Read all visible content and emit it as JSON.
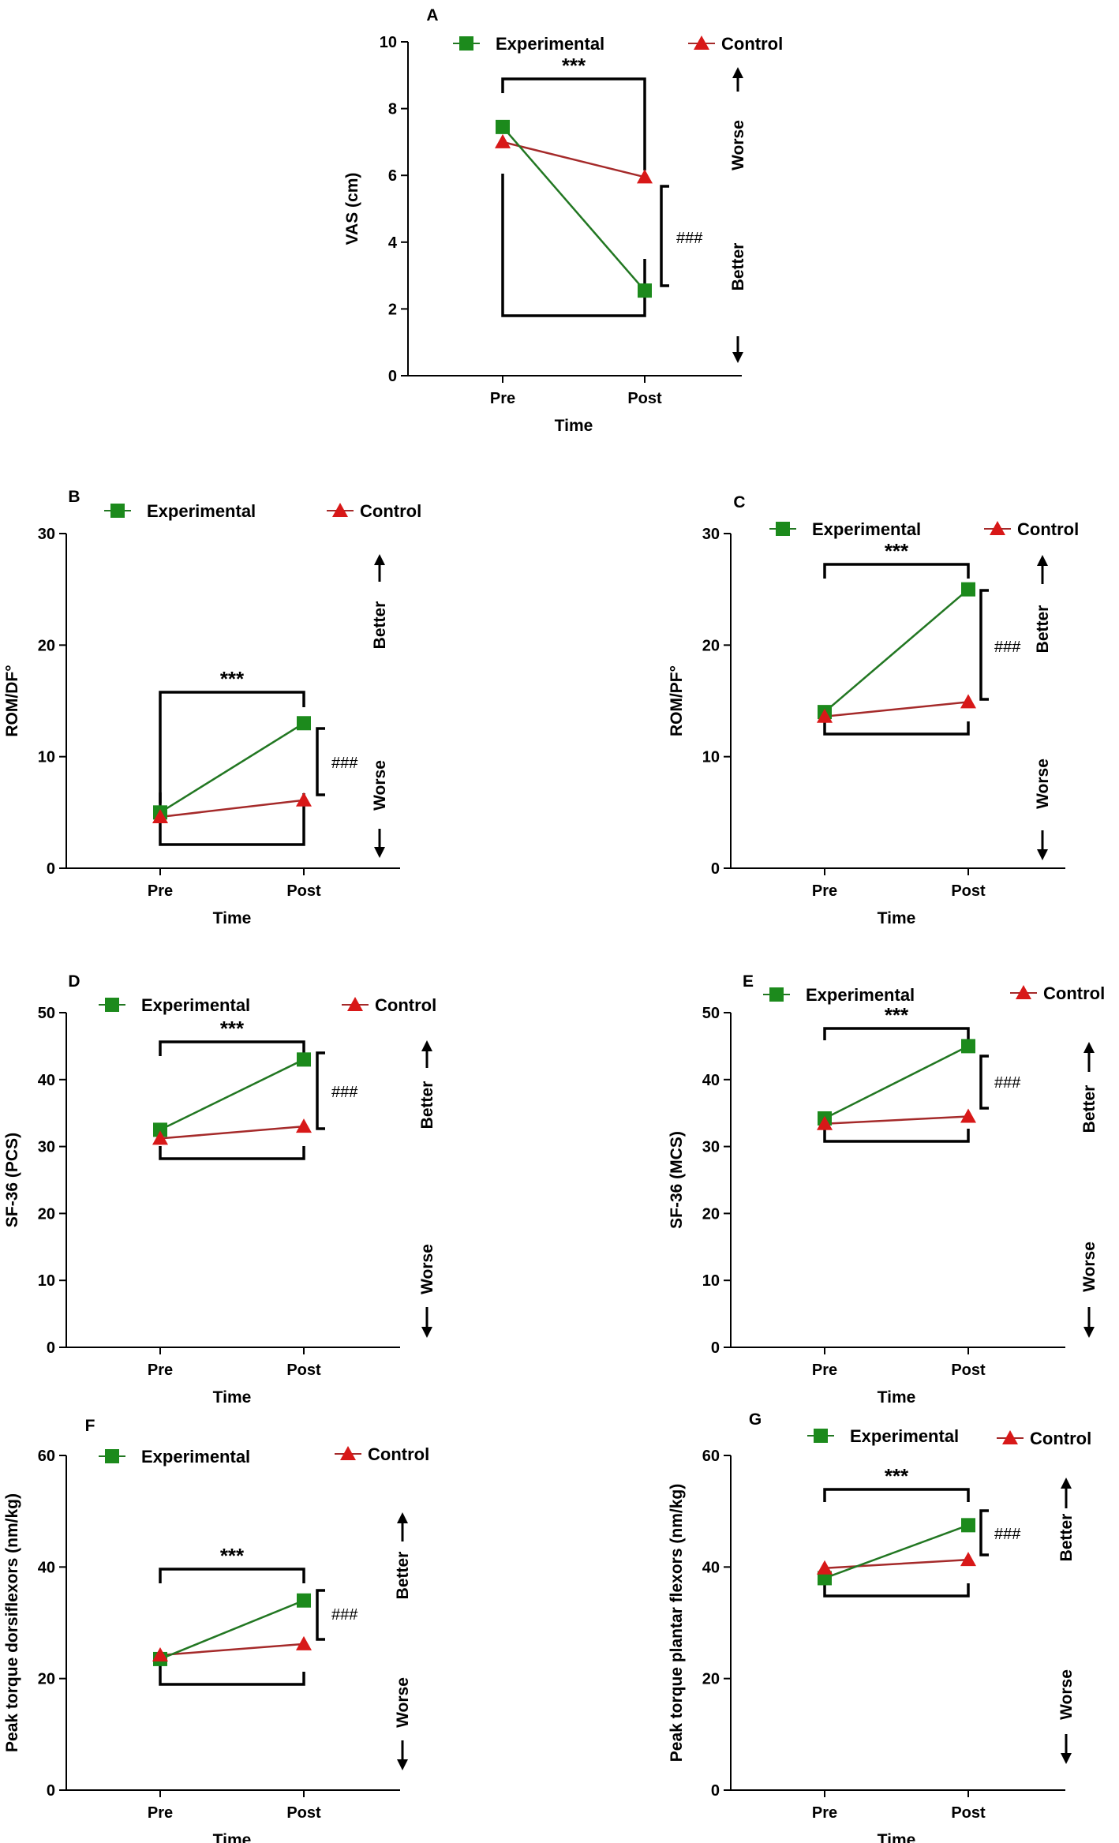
{
  "colors": {
    "experimental": "#1c8a1c",
    "experimental_line": "#227722",
    "control": "#d81818",
    "control_line": "#a52a2a",
    "ink": "#000000"
  },
  "legend": {
    "experimental": "Experimental",
    "control": "Control"
  },
  "chart_data": [
    {
      "id": "A",
      "type": "line",
      "title": "A",
      "xlabel": "Time",
      "ylabel": "VAS (cm)",
      "categories": [
        "Pre",
        "Post"
      ],
      "ylim": [
        0,
        10
      ],
      "yticks": [
        0,
        2,
        4,
        6,
        8,
        10
      ],
      "series": [
        {
          "name": "Experimental",
          "values": [
            7.45,
            2.55
          ]
        },
        {
          "name": "Control",
          "values": [
            7.0,
            5.95
          ]
        }
      ],
      "significance": {
        "within": "***",
        "between": "###"
      },
      "direction": {
        "up": "Worse",
        "down": "Better"
      }
    },
    {
      "id": "B",
      "type": "line",
      "title": "B",
      "xlabel": "Time",
      "ylabel": "ROM/DF°",
      "categories": [
        "Pre",
        "Post"
      ],
      "ylim": [
        0,
        30
      ],
      "yticks": [
        0,
        10,
        20,
        30
      ],
      "series": [
        {
          "name": "Experimental",
          "values": [
            5.0,
            13.0
          ]
        },
        {
          "name": "Control",
          "values": [
            4.6,
            6.1
          ]
        }
      ],
      "significance": {
        "within": "***",
        "between": "###"
      },
      "direction": {
        "up": "Better",
        "down": "Worse"
      }
    },
    {
      "id": "C",
      "type": "line",
      "title": "C",
      "xlabel": "Time",
      "ylabel": "ROM/PF°",
      "categories": [
        "Pre",
        "Post"
      ],
      "ylim": [
        0,
        30
      ],
      "yticks": [
        0,
        10,
        20,
        30
      ],
      "series": [
        {
          "name": "Experimental",
          "values": [
            14.0,
            25.0
          ]
        },
        {
          "name": "Control",
          "values": [
            13.6,
            14.9
          ]
        }
      ],
      "significance": {
        "within": "***",
        "between": "###"
      },
      "direction": {
        "up": "Better",
        "down": "Worse"
      }
    },
    {
      "id": "D",
      "type": "line",
      "title": "D",
      "xlabel": "Time",
      "ylabel": "SF-36 (PCS)",
      "categories": [
        "Pre",
        "Post"
      ],
      "ylim": [
        0,
        50
      ],
      "yticks": [
        0,
        10,
        20,
        30,
        40,
        50
      ],
      "series": [
        {
          "name": "Experimental",
          "values": [
            32.5,
            43.0
          ]
        },
        {
          "name": "Control",
          "values": [
            31.2,
            33.0
          ]
        }
      ],
      "significance": {
        "within": "***",
        "between": "###"
      },
      "direction": {
        "up": "Better",
        "down": "Worse"
      }
    },
    {
      "id": "E",
      "type": "line",
      "title": "E",
      "xlabel": "Time",
      "ylabel": "SF-36 (MCS)",
      "categories": [
        "Pre",
        "Post"
      ],
      "ylim": [
        0,
        50
      ],
      "yticks": [
        0,
        10,
        20,
        30,
        40,
        50
      ],
      "series": [
        {
          "name": "Experimental",
          "values": [
            34.2,
            45.0
          ]
        },
        {
          "name": "Control",
          "values": [
            33.4,
            34.5
          ]
        }
      ],
      "significance": {
        "within": "***",
        "between": "###"
      },
      "direction": {
        "up": "Better",
        "down": "Worse"
      }
    },
    {
      "id": "F",
      "type": "line",
      "title": "F",
      "xlabel": "Time",
      "ylabel": "Peak torque dorsiflexors (nm/kg)",
      "categories": [
        "Pre",
        "Post"
      ],
      "ylim": [
        0,
        60
      ],
      "yticks": [
        0,
        20,
        40,
        60
      ],
      "series": [
        {
          "name": "Experimental",
          "values": [
            23.5,
            34.0
          ]
        },
        {
          "name": "Control",
          "values": [
            24.2,
            26.2
          ]
        }
      ],
      "significance": {
        "within": "***",
        "between": "###"
      },
      "direction": {
        "up": "Better",
        "down": "Worse"
      }
    },
    {
      "id": "G",
      "type": "line",
      "title": "G",
      "xlabel": "Time",
      "ylabel": "Peak torque plantar flexors (nm/kg)",
      "categories": [
        "Pre",
        "Post"
      ],
      "ylim": [
        0,
        60
      ],
      "yticks": [
        0,
        20,
        40,
        60
      ],
      "series": [
        {
          "name": "Experimental",
          "values": [
            38.0,
            47.5
          ]
        },
        {
          "name": "Control",
          "values": [
            39.8,
            41.3
          ]
        }
      ],
      "significance": {
        "within": "***",
        "between": "###"
      },
      "direction": {
        "up": "Better",
        "down": "Worse"
      }
    }
  ]
}
